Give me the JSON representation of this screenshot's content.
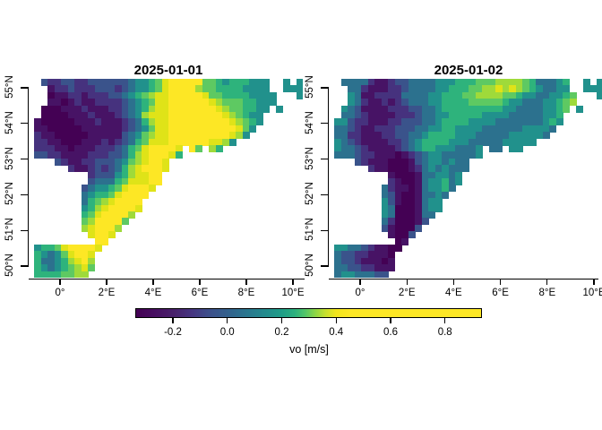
{
  "figure": {
    "background": "#ffffff",
    "panels": [
      {
        "title": "2025-01-01"
      },
      {
        "title": "2025-01-02"
      }
    ],
    "x_axis": {
      "tick_labels": [
        "0°",
        "2°E",
        "4°E",
        "6°E",
        "8°E",
        "10°E"
      ]
    },
    "y_axis": {
      "tick_labels": [
        "55°N",
        "54°N",
        "53°N",
        "52°N",
        "51°N",
        "50°N"
      ]
    },
    "colorbar": {
      "label": "vo [m/s]",
      "tick_labels": [
        "-0.2",
        "0.0",
        "0.2",
        "0.4",
        "0.6",
        "0.8"
      ],
      "min": -0.33,
      "max": 0.93,
      "gradient_stops": [
        [
          "0%",
          "#440154"
        ],
        [
          "5%",
          "#470d60"
        ],
        [
          "11%",
          "#48216b"
        ],
        [
          "16%",
          "#463480"
        ],
        [
          "21%",
          "#3d4e8a"
        ],
        [
          "27%",
          "#32628d"
        ],
        [
          "32%",
          "#2a768e"
        ],
        [
          "37%",
          "#23898d"
        ],
        [
          "42%",
          "#1f9d88"
        ],
        [
          "46%",
          "#2cb17e"
        ],
        [
          "49%",
          "#52c569"
        ],
        [
          "52%",
          "#8ed645"
        ],
        [
          "55%",
          "#c8e02e"
        ],
        [
          "58%",
          "#f2e51c"
        ],
        [
          "62%",
          "#fde725"
        ],
        [
          "100%",
          "#fde725"
        ]
      ]
    }
  },
  "palette": {
    "0": "#440154",
    "1": "#471365",
    "2": "#46327e",
    "3": "#3a538b",
    "4": "#2c718e",
    "5": "#21918c",
    "6": "#2eb37c",
    "7": "#5ec962",
    "8": "#9fda3a",
    "9": "#dfe318",
    "a": "#fde725"
  },
  "chart_data": [
    {
      "type": "heatmap",
      "title": "2025-01-01",
      "variable": "vo [m/s]",
      "lon_range": [
        -1.1,
        10.55
      ],
      "lat_range": [
        49.7,
        55.25
      ],
      "no_data_char": ".",
      "level_values": {
        "0": -0.3,
        "1": -0.22,
        "2": -0.14,
        "3": -0.06,
        "4": 0.02,
        "5": 0.1,
        "6": 0.17,
        "7": 0.24,
        "8": 0.3,
        "9": 0.35,
        "a": 0.6
      },
      "grid": [
        ".3223322333333455679aaaaa7765666555..5.5",
        "..122322233323455679aaaa87766665555..555",
        "..011221222334567899aaaaa97766665555...5",
        "..110121122223456799aaaaaa9877766555....",
        ".0001112111223456899aaaaaaa98776655.5...",
        ".0000111211123458999aaaaaaaa987655......",
        "10000011121112346899aaaaaaaaa98765......",
        "11000001111112345799aaaaaaaaaa975.......",
        "21100000111113457899aaaaaaaaa985........",
        "22110001112123467999aaaaaa9985..........",
        "22211011122234679aaaa9.a7.86............",
        "33221111222334689aaa96..................",
        "...32112233345789aa9....................",
        ".....21123234689aaa9....................",
        "........233356899aa.....................",
        "........344467999aa.....................",
        ".......3455679aaa9......................",
        ".......456679aaaa.......................",
        ".......46789aaaa........................",
        ".......5689aaaa9........................",
        ".......679aaaa8.........................",
        ".......78aaaa7..........................",
        ".......89aaa8...........................",
        "........9aa9............................",
        ".........aa.............................",
        "56679aaaa9..............................",
        "654579aa9...............................",
        "6445689a8...............................",
        "654567897...............................",
        "66667788................................"
      ]
    },
    {
      "type": "heatmap",
      "title": "2025-01-02",
      "variable": "vo [m/s]",
      "lon_range": [
        -1.1,
        10.55
      ],
      "lat_range": [
        49.7,
        55.25
      ],
      "no_data_char": ".",
      "level_values": {
        "0": -0.3,
        "1": -0.22,
        "2": -0.14,
        "3": -0.06,
        "4": 0.02,
        "5": 0.1,
        "6": 0.17,
        "7": 0.24,
        "8": 0.3,
        "9": 0.35,
        "a": 0.6
      },
      "grid": [
        ".4444211233444455566677788887644456..5.5",
        "..442111223444455666778898987654455..555",
        "..541122224444556667788887765544556 7...5",
        "..542112123444556666777776554445 5678....",
        ".54311112223344566666666655444455 67.5...",
        ".44321111222344556666655554444455 6......",
        "55322111223334456666555544444445 65......",
        "44321122233344556655554444445555 4.......",
        "44221112233445666655544444555554........",
        "54321111223456666555444445555 5..........",
        "544321111234566555444 5.44.55.............",
        "44432211101234554444 45..................",
        "...321110001345545 44....................",
        ".....2110001245454 44....................",
        "........10001445545.....................",
        "........21001455645.....................",
        ".......42110145564......................",
        ".......4310014454.......................",
        ".......531001455........................",
        ".......540001455........................",
        ".......54000144.........................",
        ".......4200013..........................",
        ".......310003...........................",
        "........1003............................",
        ".........01.............................",
        "5544321100..............................",
        "433221110...............................",
        "433211101...............................",
        "443322111...............................",
        "45544433................................"
      ]
    }
  ]
}
